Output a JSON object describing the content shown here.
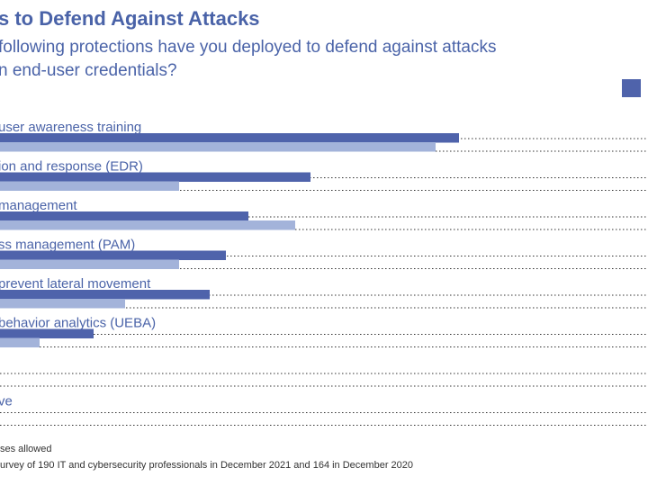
{
  "header": {
    "title": "s to Defend Against Attacks",
    "subtitle_lines": [
      "following protections have you deployed to defend against attacks",
      "n end-user credentials?"
    ]
  },
  "colors": {
    "series_2021": "#4f63ab",
    "series_2020": "#a3b3da",
    "dotted_line": "#333333",
    "label_text": "#4a63a8"
  },
  "chart_data": {
    "type": "bar",
    "orientation": "horizontal",
    "categories": [
      "user awareness training",
      "ion and response (EDR)",
      "management",
      "ss management (PAM)",
      "prevent lateral movement",
      "behavior analytics (UEBA)",
      "",
      "ve"
    ],
    "series": [
      {
        "values": [
          510,
          345,
          276,
          251,
          233,
          104,
          0,
          0
        ]
      },
      {
        "values": [
          484,
          199,
          328,
          199,
          139,
          44,
          0,
          0
        ]
      }
    ]
  },
  "footnotes": [
    "ses allowed",
    "urvey of 190 IT and cybersecurity professionals in December 2021 and 164 in December 2020"
  ]
}
